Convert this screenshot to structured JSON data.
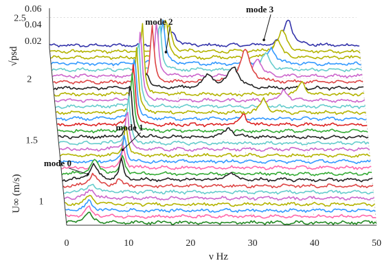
{
  "chart_data": {
    "type": "line",
    "subtype": "3d-waterfall",
    "title": "",
    "xlabel": "ν Hz",
    "ylabel": "U∞ (m/s)",
    "zlabel": "√psd",
    "xlim": [
      0,
      50
    ],
    "xticks": [
      0,
      10,
      20,
      30,
      40,
      50
    ],
    "yticks": [
      1,
      1.5,
      2,
      2.5
    ],
    "zticks": [
      "0.02",
      "0.04",
      "0.06"
    ],
    "grid": true,
    "legend": "none",
    "series": [
      {
        "u": 0.8,
        "color": "#228822",
        "peaks": [
          [
            3.5,
            0.55,
            0.7
          ]
        ]
      },
      {
        "u": 0.85,
        "color": "#ff66aa",
        "peaks": [
          [
            3.6,
            0.5,
            0.7
          ]
        ]
      },
      {
        "u": 0.9,
        "color": "#3399ff",
        "peaks": [
          [
            3.8,
            0.5,
            0.7
          ]
        ]
      },
      {
        "u": 0.95,
        "color": "#b3b300",
        "peaks": [
          [
            4.0,
            0.5,
            0.7
          ]
        ]
      },
      {
        "u": 1.0,
        "color": "#cc66cc",
        "peaks": [
          [
            4.2,
            0.5,
            0.7
          ]
        ]
      },
      {
        "u": 1.05,
        "color": "#66cccc",
        "peaks": [
          [
            4.5,
            0.5,
            0.7
          ]
        ]
      },
      {
        "u": 1.1,
        "color": "#dd4444",
        "peaks": [
          [
            4.8,
            0.7,
            0.7
          ],
          [
            9.0,
            0.4,
            0.5
          ]
        ]
      },
      {
        "u": 1.15,
        "color": "#222222",
        "peaks": [
          [
            5.0,
            0.9,
            0.7
          ],
          [
            9.5,
            1.1,
            0.4
          ],
          [
            27.0,
            0.4,
            0.8
          ]
        ]
      },
      {
        "u": 1.2,
        "color": "#33aa33",
        "peaks": [
          [
            5.3,
            0.8,
            0.7
          ],
          [
            9.8,
            1.0,
            0.4
          ]
        ]
      },
      {
        "u": 1.25,
        "color": "#ff66aa",
        "peaks": [
          [
            10.0,
            1.2,
            0.35
          ]
        ]
      },
      {
        "u": 1.3,
        "color": "#3399ff",
        "peaks": [
          [
            10.3,
            1.5,
            0.35
          ]
        ]
      },
      {
        "u": 1.35,
        "color": "#b3b300",
        "peaks": [
          [
            10.6,
            1.8,
            0.35
          ]
        ]
      },
      {
        "u": 1.4,
        "color": "#cc66cc",
        "peaks": [
          [
            10.9,
            2.2,
            0.35
          ]
        ]
      },
      {
        "u": 1.45,
        "color": "#66cccc",
        "peaks": [
          [
            11.2,
            2.6,
            0.35
          ]
        ]
      },
      {
        "u": 1.5,
        "color": "#222222",
        "peaks": [
          [
            11.6,
            3.0,
            0.35
          ],
          [
            27.5,
            0.5,
            0.8
          ]
        ]
      },
      {
        "u": 1.55,
        "color": "#33aa33",
        "peaks": [
          [
            12.0,
            3.3,
            0.35
          ]
        ]
      },
      {
        "u": 1.6,
        "color": "#dd2222",
        "peaks": [
          [
            12.3,
            3.5,
            0.35
          ],
          [
            30.0,
            0.6,
            0.6
          ]
        ]
      },
      {
        "u": 1.65,
        "color": "#3399ff",
        "peaks": [
          [
            12.6,
            3.6,
            0.35
          ]
        ]
      },
      {
        "u": 1.7,
        "color": "#b3b300",
        "peaks": [
          [
            13.0,
            3.7,
            0.35
          ],
          [
            33.5,
            0.8,
            0.6
          ]
        ]
      },
      {
        "u": 1.75,
        "color": "#66cccc",
        "peaks": [
          [
            13.4,
            3.8,
            0.35
          ]
        ]
      },
      {
        "u": 1.8,
        "color": "#cc66cc",
        "peaks": [
          [
            13.8,
            3.9,
            0.35
          ],
          [
            37.0,
            0.6,
            0.6
          ]
        ]
      },
      {
        "u": 1.85,
        "color": "#b3b300",
        "peaks": [
          [
            14.2,
            4.0,
            0.35
          ],
          [
            40.0,
            0.7,
            0.6
          ]
        ]
      },
      {
        "u": 1.9,
        "color": "#222222",
        "peaks": [
          [
            15.0,
            0.8,
            0.6
          ],
          [
            25.0,
            0.7,
            1.0
          ],
          [
            29.0,
            1.2,
            1.0
          ]
        ]
      },
      {
        "u": 1.95,
        "color": "#dd4444",
        "peaks": [
          [
            16.0,
            3.2,
            0.35
          ],
          [
            31.0,
            1.8,
            1.0
          ]
        ]
      },
      {
        "u": 2.0,
        "color": "#cc66cc",
        "peaks": [
          [
            16.8,
            3.0,
            0.35
          ],
          [
            33.0,
            1.0,
            0.8
          ]
        ]
      },
      {
        "u": 2.05,
        "color": "#66cccc",
        "peaks": [
          [
            17.4,
            2.8,
            0.35
          ],
          [
            34.5,
            0.9,
            0.8
          ]
        ]
      },
      {
        "u": 2.1,
        "color": "#3399ff",
        "peaks": [
          [
            18.0,
            2.5,
            0.4
          ],
          [
            35.5,
            0.9,
            0.8
          ]
        ]
      },
      {
        "u": 2.15,
        "color": "#b3b300",
        "peaks": [
          [
            18.6,
            2.2,
            0.4
          ],
          [
            36.5,
            1.0,
            0.8
          ]
        ]
      },
      {
        "u": 2.2,
        "color": "#b3b300",
        "peaks": [
          [
            19.2,
            1.5,
            0.5
          ],
          [
            37.5,
            1.2,
            0.8
          ]
        ]
      },
      {
        "u": 2.25,
        "color": "#3333aa",
        "peaks": [
          [
            19.8,
            0.8,
            0.7
          ],
          [
            38.5,
            1.5,
            0.8
          ]
        ]
      }
    ],
    "annotations": [
      {
        "label": "mode 0",
        "x": 4.0,
        "u": 1.1
      },
      {
        "label": "mode 1",
        "x": 10.0,
        "u": 1.3
      },
      {
        "label": "mode 2",
        "x": 18.5,
        "u": 2.1
      },
      {
        "label": "mode 3",
        "x": 34.5,
        "u": 2.2
      }
    ]
  }
}
